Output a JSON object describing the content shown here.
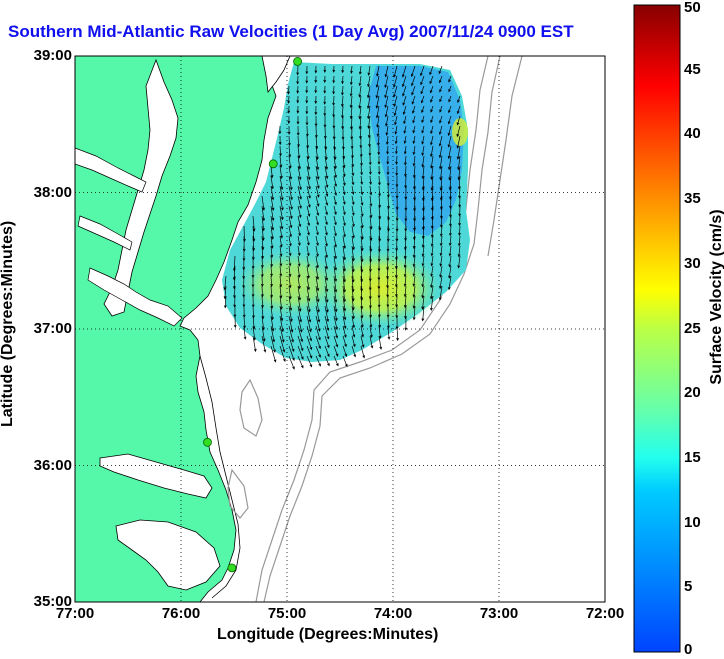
{
  "title": "Southern Mid-Atlantic Raw Velocities (1 Day Avg) 2007/11/24 0900 EST",
  "colors": {
    "title": "#1010ee",
    "land": "#55f7a8",
    "water": "#ffffff",
    "coast": "#000000",
    "bathymetry": "#999999",
    "stations": "#33dd22"
  },
  "chart_data": {
    "type": "heatmap",
    "title": "Southern Mid-Atlantic Raw Velocities (1 Day Avg) 2007/11/24 0900 EST",
    "xlabel": "Longitude (Degrees:Minutes)",
    "ylabel": "Latitude (Degrees:Minutes)",
    "x_ticks": [
      "77:00",
      "76:00",
      "75:00",
      "74:00",
      "73:00",
      "72:00"
    ],
    "y_ticks": [
      "39:00",
      "38:00",
      "37:00",
      "36:00",
      "35:00"
    ],
    "xlim": [
      -77,
      -72
    ],
    "ylim": [
      35,
      39
    ],
    "grid": true,
    "colorbar": {
      "label": "Surface Velocity (cm/s)",
      "ticks": [
        0,
        5,
        10,
        15,
        20,
        25,
        30,
        35,
        40,
        45,
        50
      ],
      "range": [
        0,
        50
      ],
      "colormap": "jet"
    },
    "stations": [
      {
        "lon": -74.9,
        "lat": 38.96
      },
      {
        "lon": -75.13,
        "lat": 38.21
      },
      {
        "lon": -75.75,
        "lat": 36.17
      },
      {
        "lon": -75.52,
        "lat": 35.25
      }
    ]
  }
}
